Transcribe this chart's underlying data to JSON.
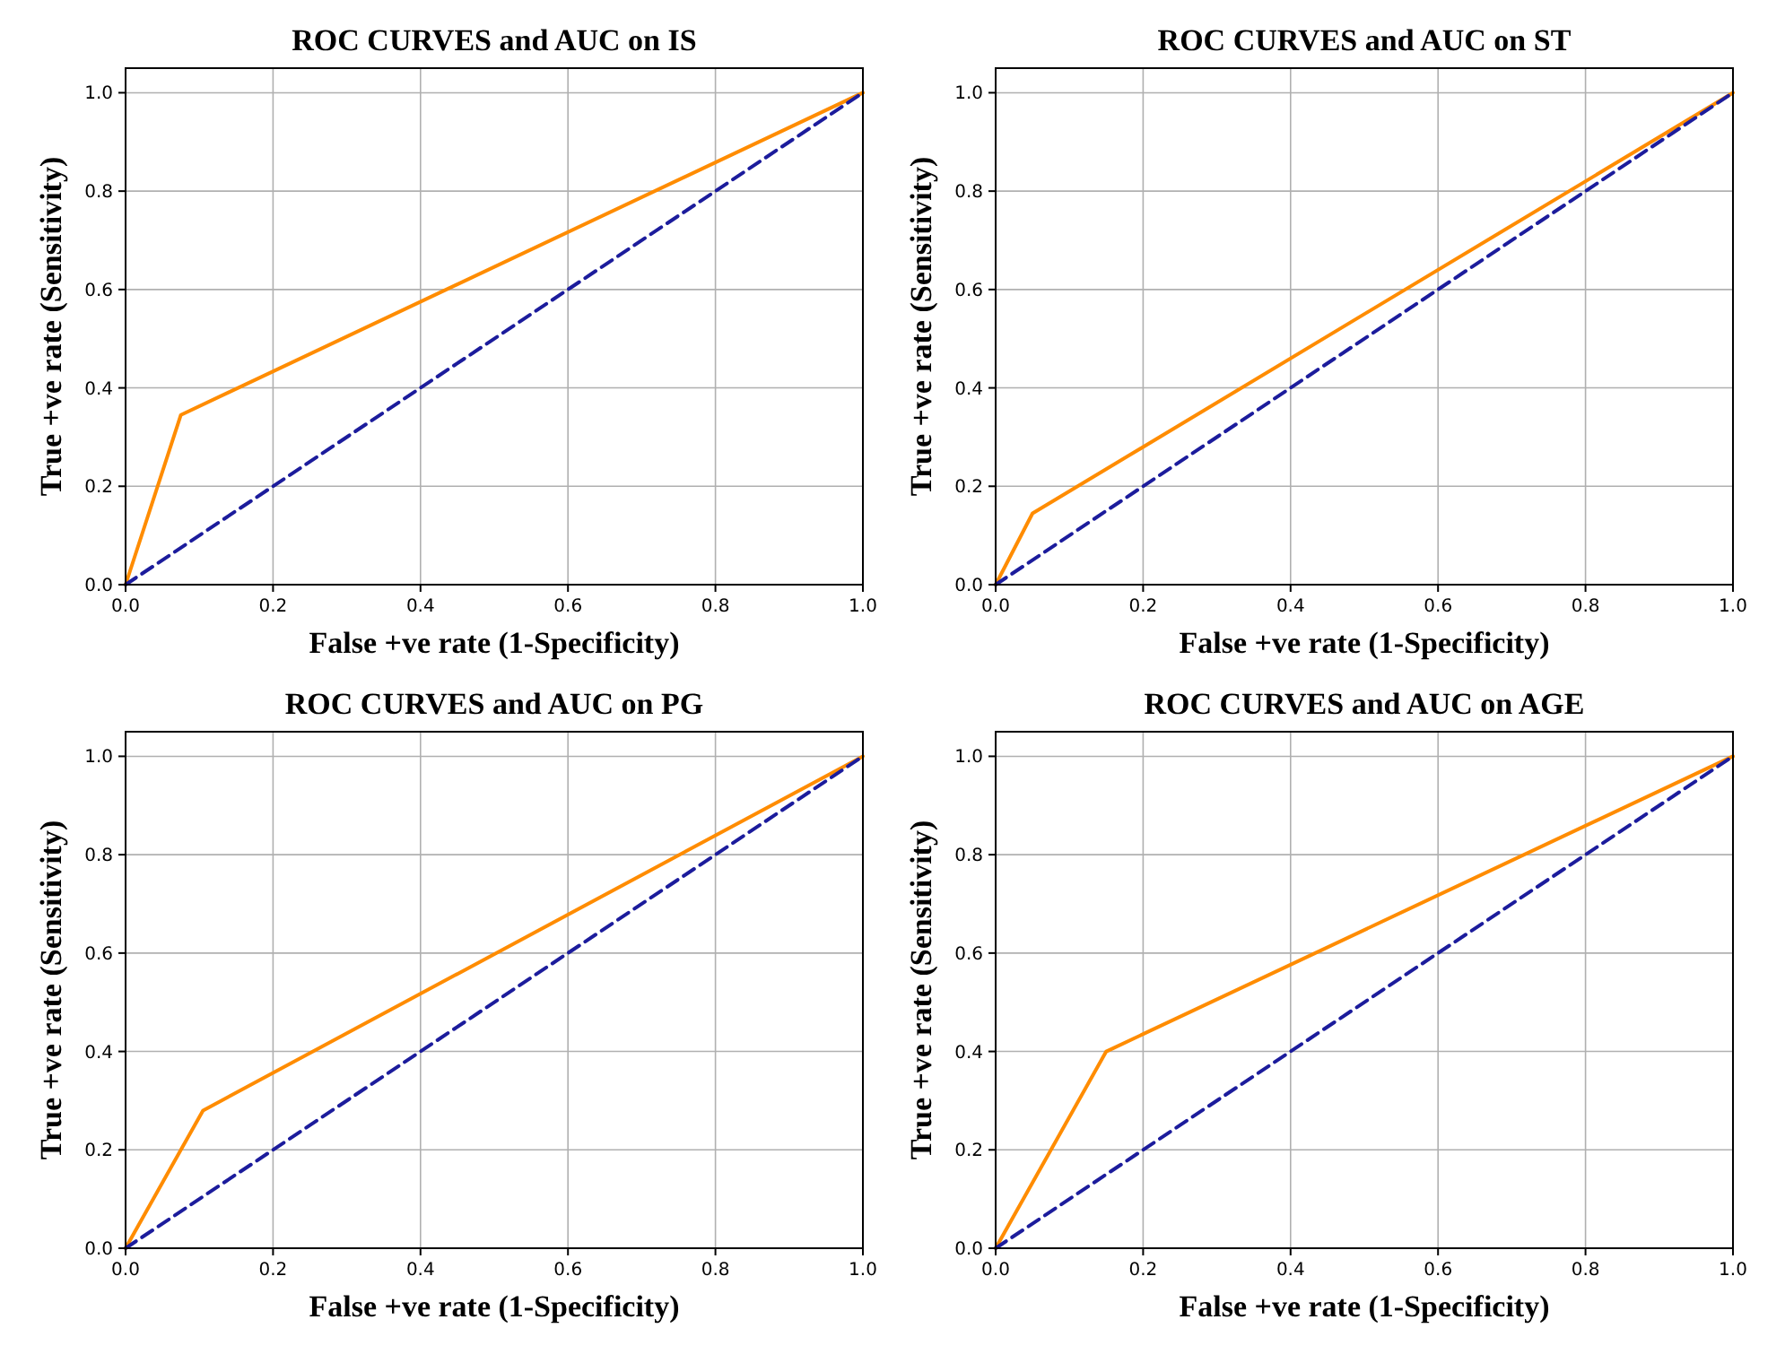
{
  "chart_data": [
    {
      "type": "line",
      "title": "ROC CURVES and AUC on IS",
      "xlabel": "False +ve rate (1-Specificity)",
      "ylabel": "True +ve rate (Sensitivity)",
      "xlim": [
        0,
        1
      ],
      "ylim": [
        0,
        1.05
      ],
      "xticks": [
        {
          "value": 0,
          "label": "0.0"
        },
        {
          "value": 0.2,
          "label": "0.2"
        },
        {
          "value": 0.4,
          "label": "0.4"
        },
        {
          "value": 0.6,
          "label": "0.6"
        },
        {
          "value": 0.8,
          "label": "0.8"
        },
        {
          "value": 1,
          "label": "1.0"
        }
      ],
      "yticks": [
        {
          "value": 0,
          "label": "0.0"
        },
        {
          "value": 0.2,
          "label": "0.2"
        },
        {
          "value": 0.4,
          "label": "0.4"
        },
        {
          "value": 0.6,
          "label": "0.6"
        },
        {
          "value": 0.8,
          "label": "0.8"
        },
        {
          "value": 1,
          "label": "1.0"
        }
      ],
      "grid": true,
      "series": [
        {
          "color": "#ff8c00",
          "x": [
            0,
            0.075,
            1
          ],
          "values": [
            0,
            0.345,
            1
          ],
          "line_style": "solid"
        },
        {
          "color": "#1c1c9c",
          "x": [
            0,
            1
          ],
          "values": [
            0,
            1
          ],
          "line_style": "dashed"
        }
      ]
    },
    {
      "type": "line",
      "title": "ROC CURVES and AUC on ST",
      "xlabel": "False +ve rate (1-Specificity)",
      "ylabel": "True +ve rate (Sensitivity)",
      "xlim": [
        0,
        1
      ],
      "ylim": [
        0,
        1.05
      ],
      "xticks": [
        {
          "value": 0,
          "label": "0.0"
        },
        {
          "value": 0.2,
          "label": "0.2"
        },
        {
          "value": 0.4,
          "label": "0.4"
        },
        {
          "value": 0.6,
          "label": "0.6"
        },
        {
          "value": 0.8,
          "label": "0.8"
        },
        {
          "value": 1,
          "label": "1.0"
        }
      ],
      "yticks": [
        {
          "value": 0,
          "label": "0.0"
        },
        {
          "value": 0.2,
          "label": "0.2"
        },
        {
          "value": 0.4,
          "label": "0.4"
        },
        {
          "value": 0.6,
          "label": "0.6"
        },
        {
          "value": 0.8,
          "label": "0.8"
        },
        {
          "value": 1,
          "label": "1.0"
        }
      ],
      "grid": true,
      "series": [
        {
          "color": "#ff8c00",
          "x": [
            0,
            0.05,
            1
          ],
          "values": [
            0,
            0.145,
            1
          ],
          "line_style": "solid"
        },
        {
          "color": "#1c1c9c",
          "x": [
            0,
            1
          ],
          "values": [
            0,
            1
          ],
          "line_style": "dashed"
        }
      ]
    },
    {
      "type": "line",
      "title": "ROC CURVES and AUC on PG",
      "xlabel": "False +ve rate (1-Specificity)",
      "ylabel": "True +ve rate (Sensitivity)",
      "xlim": [
        0,
        1
      ],
      "ylim": [
        0,
        1.05
      ],
      "xticks": [
        {
          "value": 0,
          "label": "0.0"
        },
        {
          "value": 0.2,
          "label": "0.2"
        },
        {
          "value": 0.4,
          "label": "0.4"
        },
        {
          "value": 0.6,
          "label": "0.6"
        },
        {
          "value": 0.8,
          "label": "0.8"
        },
        {
          "value": 1,
          "label": "1.0"
        }
      ],
      "yticks": [
        {
          "value": 0,
          "label": "0.0"
        },
        {
          "value": 0.2,
          "label": "0.2"
        },
        {
          "value": 0.4,
          "label": "0.4"
        },
        {
          "value": 0.6,
          "label": "0.6"
        },
        {
          "value": 0.8,
          "label": "0.8"
        },
        {
          "value": 1,
          "label": "1.0"
        }
      ],
      "grid": true,
      "series": [
        {
          "color": "#ff8c00",
          "x": [
            0,
            0.105,
            1
          ],
          "values": [
            0,
            0.28,
            1
          ],
          "line_style": "solid"
        },
        {
          "color": "#1c1c9c",
          "x": [
            0,
            1
          ],
          "values": [
            0,
            1
          ],
          "line_style": "dashed"
        }
      ]
    },
    {
      "type": "line",
      "title": "ROC CURVES and AUC on AGE",
      "xlabel": "False +ve rate (1-Specificity)",
      "ylabel": "True +ve rate (Sensitivity)",
      "xlim": [
        0,
        1
      ],
      "ylim": [
        0,
        1.05
      ],
      "xticks": [
        {
          "value": 0,
          "label": "0.0"
        },
        {
          "value": 0.2,
          "label": "0.2"
        },
        {
          "value": 0.4,
          "label": "0.4"
        },
        {
          "value": 0.6,
          "label": "0.6"
        },
        {
          "value": 0.8,
          "label": "0.8"
        },
        {
          "value": 1,
          "label": "1.0"
        }
      ],
      "yticks": [
        {
          "value": 0,
          "label": "0.0"
        },
        {
          "value": 0.2,
          "label": "0.2"
        },
        {
          "value": 0.4,
          "label": "0.4"
        },
        {
          "value": 0.6,
          "label": "0.6"
        },
        {
          "value": 0.8,
          "label": "0.8"
        },
        {
          "value": 1,
          "label": "1.0"
        }
      ],
      "grid": true,
      "series": [
        {
          "color": "#ff8c00",
          "x": [
            0,
            0.15,
            1
          ],
          "values": [
            0,
            0.4,
            1
          ],
          "line_style": "solid"
        },
        {
          "color": "#1c1c9c",
          "x": [
            0,
            1
          ],
          "values": [
            0,
            1
          ],
          "line_style": "dashed"
        }
      ]
    }
  ]
}
